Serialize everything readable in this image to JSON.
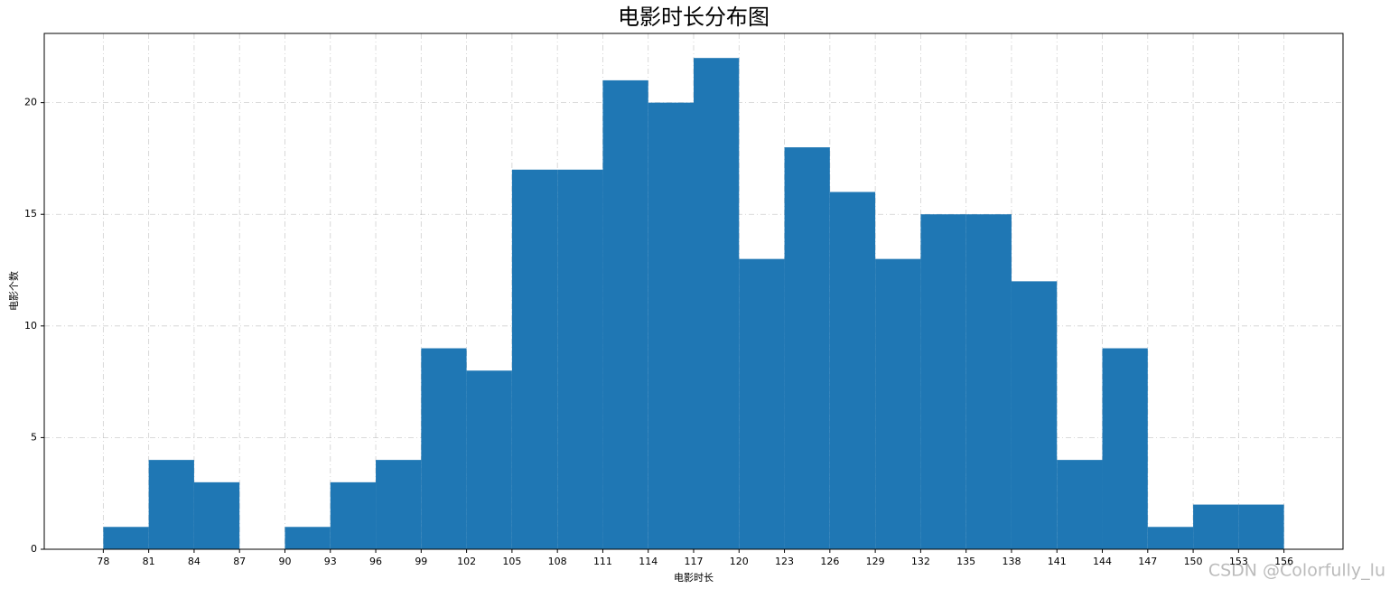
{
  "chart_data": {
    "type": "histogram",
    "title": "电影时长分布图",
    "x_label": "电影时长",
    "y_label": "电影个数",
    "bins": [
      78,
      81,
      84,
      87,
      90,
      93,
      96,
      99,
      102,
      105,
      108,
      111,
      114,
      117,
      120,
      123,
      126,
      129,
      132,
      135,
      138,
      141,
      144,
      147,
      150,
      153,
      156
    ],
    "counts": [
      1,
      4,
      3,
      0,
      1,
      3,
      4,
      9,
      8,
      17,
      17,
      21,
      20,
      22,
      13,
      18,
      16,
      13,
      15,
      15,
      12,
      4,
      9,
      1,
      2,
      2
    ],
    "color": "#1f77b4",
    "xlim": [
      74.1,
      159.9
    ],
    "ylim": [
      0,
      23.1
    ],
    "xticks": [
      78,
      81,
      84,
      87,
      90,
      93,
      96,
      99,
      102,
      105,
      108,
      111,
      114,
      117,
      120,
      123,
      126,
      129,
      132,
      135,
      138,
      141,
      144,
      147,
      150,
      153,
      156
    ],
    "yticks": [
      0,
      5,
      10,
      15,
      20
    ],
    "grid": true,
    "watermark": "CSDN @Colorfully_lu"
  }
}
